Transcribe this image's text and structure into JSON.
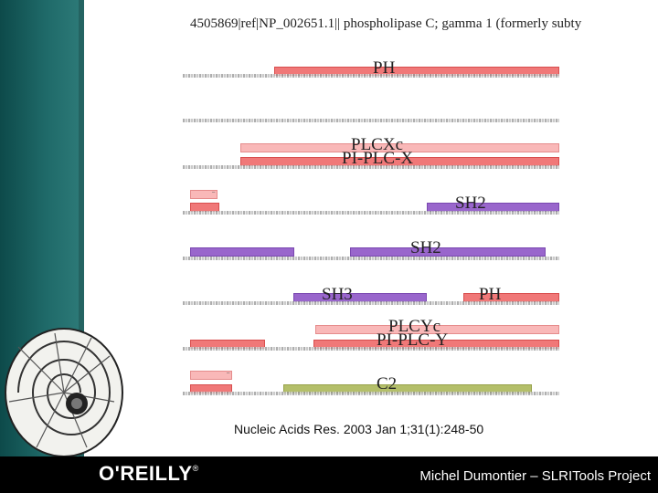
{
  "figure": {
    "title": "4505869|ref|NP_002651.1|| phospholipase C; gamma 1 (formerly subty",
    "labels": {
      "ph_1": "PH",
      "plcxc": "PLCXc",
      "pi_plc_x": "PI-PLC-X",
      "sh2_1": "SH2",
      "sh2_2": "SH2",
      "sh3": "SH3",
      "ph_2": "PH",
      "plcyc": "PLCYc",
      "pi_plc_y": "PI-PLC-Y",
      "c2": "C2"
    },
    "colors": {
      "ph": "#f07878",
      "plcxc": "#f9b8b8",
      "sh2": "#9966cc",
      "c2": "#b4bf6a"
    }
  },
  "citation": "Nucleic Acids Res. 2003 Jan 1;31(1):248-50",
  "footer": {
    "logo": "O'REILLY",
    "author": "Michel Dumontier – SLRITools Project"
  }
}
